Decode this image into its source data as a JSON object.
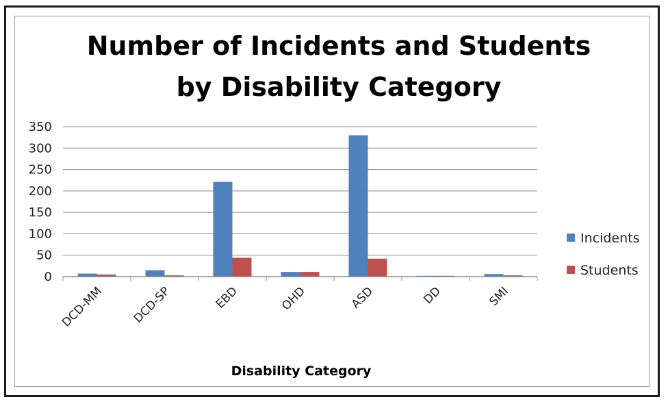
{
  "chart_data": {
    "type": "bar",
    "title_line1": "Number of Incidents and Students",
    "title_line2": "by Disability Category",
    "xlabel": "Disability Category",
    "ylabel": "",
    "categories": [
      "DCD-MM",
      "DCD-SP",
      "EBD",
      "OHD",
      "ASD",
      "DD",
      "SMI"
    ],
    "series": [
      {
        "name": "Incidents",
        "color": "#4f81bd",
        "values": [
          7,
          15,
          221,
          11,
          330,
          2,
          6
        ]
      },
      {
        "name": "Students",
        "color": "#c0504d",
        "values": [
          5,
          3,
          44,
          11,
          42,
          2,
          3
        ]
      }
    ],
    "ylim": [
      0,
      350
    ],
    "yticks": [
      0,
      50,
      100,
      150,
      200,
      250,
      300,
      350
    ],
    "grid": true,
    "legend_position": "right"
  }
}
